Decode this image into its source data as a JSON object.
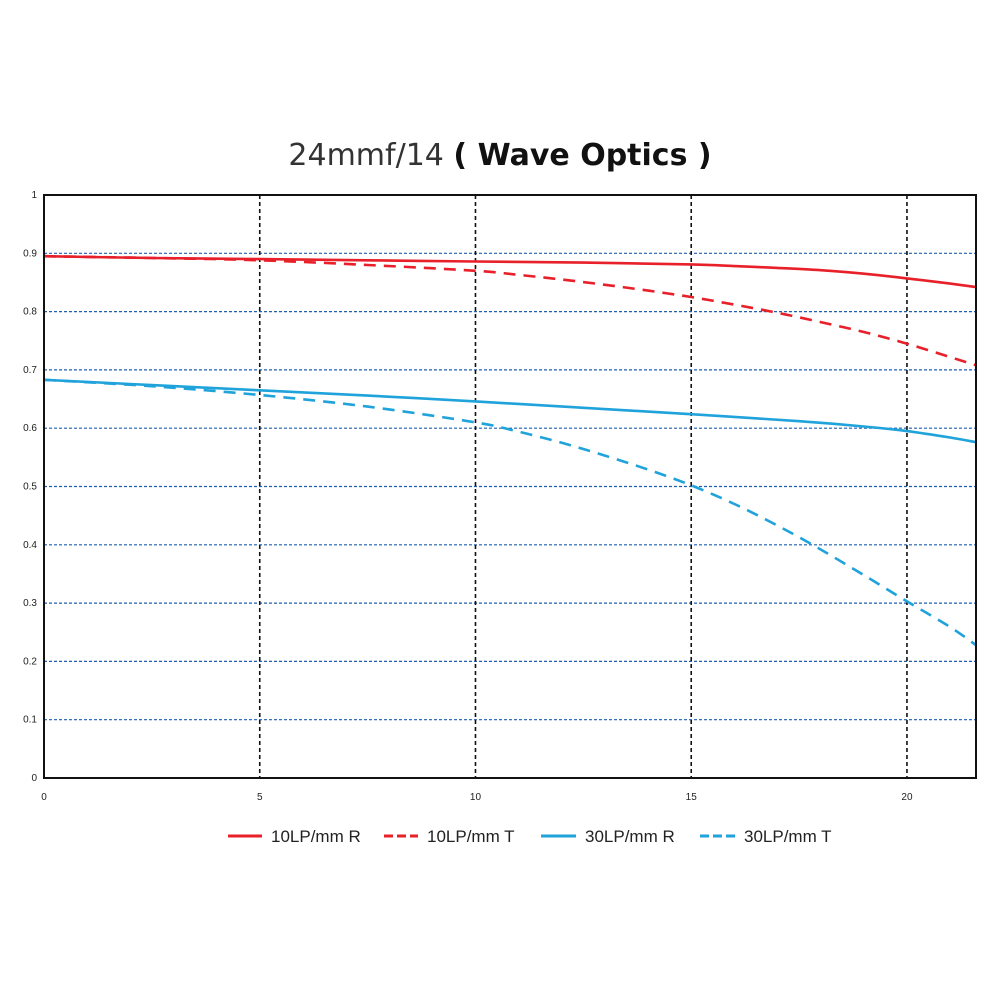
{
  "title": {
    "main": "24mmf/14",
    "sub": "( Wave Optics )"
  },
  "colors": {
    "red": "#e8202a",
    "blue": "#1fa3da",
    "grid_h": "#1f5fb0",
    "grid_v": "#111111",
    "frame": "#111111"
  },
  "chart_data": {
    "type": "line",
    "title": "24mmf/14 ( Wave Optics )",
    "xlabel": "",
    "ylabel": "",
    "xlim": [
      0,
      21.6
    ],
    "ylim": [
      0,
      1
    ],
    "x_ticks": [
      0,
      5,
      10,
      15,
      20
    ],
    "y_ticks": [
      0,
      0.1,
      0.2,
      0.3,
      0.4,
      0.5,
      0.6,
      0.7,
      0.8,
      0.9,
      1
    ],
    "y_tick_labels": [
      "0",
      "0.1",
      "0.2",
      "0.3",
      "0.4",
      "0.5",
      "0.6",
      "0.7",
      "0.8",
      "0.9",
      "1"
    ],
    "grid": {
      "horizontal": "dotted-blue",
      "vertical": "dashed-black"
    },
    "legend_position": "bottom",
    "series": [
      {
        "name": "10LP/mm R",
        "color": "#e8202a",
        "style": "solid",
        "x": [
          0,
          2.5,
          5,
          7.5,
          10,
          12.5,
          15,
          16,
          17,
          18,
          19,
          20,
          21,
          21.6
        ],
        "y": [
          0.895,
          0.892,
          0.89,
          0.888,
          0.886,
          0.884,
          0.881,
          0.878,
          0.875,
          0.871,
          0.865,
          0.857,
          0.848,
          0.842
        ]
      },
      {
        "name": "10LP/mm T",
        "color": "#e8202a",
        "style": "dashed",
        "x": [
          0,
          2.5,
          5,
          7.5,
          10,
          11,
          12,
          13,
          14,
          15,
          16,
          17,
          18,
          19,
          20,
          21,
          21.6
        ],
        "y": [
          0.895,
          0.892,
          0.888,
          0.88,
          0.87,
          0.863,
          0.855,
          0.846,
          0.836,
          0.825,
          0.812,
          0.798,
          0.782,
          0.765,
          0.745,
          0.722,
          0.708
        ]
      },
      {
        "name": "30LP/mm R",
        "color": "#1fa3da",
        "style": "solid",
        "x": [
          0,
          2.5,
          5,
          7.5,
          10,
          12.5,
          15,
          17.5,
          19,
          20,
          21,
          21.6
        ],
        "y": [
          0.683,
          0.674,
          0.665,
          0.656,
          0.646,
          0.635,
          0.624,
          0.612,
          0.603,
          0.595,
          0.584,
          0.576
        ]
      },
      {
        "name": "30LP/mm T",
        "color": "#1fa3da",
        "style": "dashed",
        "x": [
          0,
          2.5,
          5,
          7.5,
          10,
          11,
          12,
          13,
          14,
          15,
          16,
          17,
          18,
          19,
          20,
          21,
          21.6
        ],
        "y": [
          0.683,
          0.672,
          0.657,
          0.637,
          0.61,
          0.594,
          0.575,
          0.553,
          0.529,
          0.502,
          0.47,
          0.433,
          0.392,
          0.348,
          0.303,
          0.259,
          0.228
        ]
      }
    ]
  }
}
